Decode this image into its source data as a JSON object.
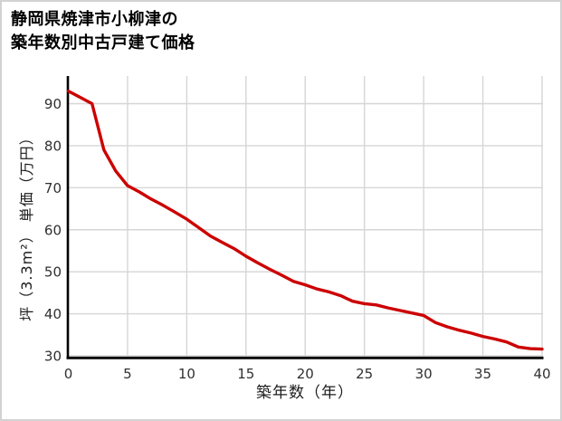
{
  "page": {
    "title_line1": "静岡県焼津市小柳津の",
    "title_line2": "築年数別中古戸建て価格"
  },
  "chart_data": {
    "type": "line",
    "title": "静岡県焼津市小柳津の築年数別中古戸建て価格",
    "xlabel": "築年数（年）",
    "ylabel": "坪（3.3m²） 単価（万円）",
    "x": [
      0,
      1,
      2,
      3,
      4,
      5,
      6,
      7,
      8,
      9,
      10,
      11,
      12,
      13,
      14,
      15,
      16,
      17,
      18,
      19,
      20,
      21,
      22,
      23,
      24,
      25,
      26,
      27,
      28,
      29,
      30,
      31,
      32,
      33,
      34,
      35,
      36,
      37,
      38,
      39,
      40
    ],
    "values": [
      93,
      91.5,
      90,
      79,
      74,
      70.5,
      69,
      67.3,
      65.8,
      64.2,
      62.5,
      60.5,
      58.5,
      57,
      55.5,
      53.7,
      52.1,
      50.6,
      49.2,
      47.7,
      46.9,
      45.9,
      45.2,
      44.3,
      43,
      42.4,
      42.1,
      41.4,
      40.8,
      40.2,
      39.6,
      37.9,
      36.9,
      36.1,
      35.4,
      34.6,
      34,
      33.3,
      32.1,
      31.7,
      31.6
    ],
    "xlim": [
      0,
      40
    ],
    "ylim": [
      30,
      96
    ],
    "x_ticks": [
      0,
      5,
      10,
      15,
      20,
      25,
      30,
      35,
      40
    ],
    "y_ticks": [
      30,
      40,
      50,
      60,
      70,
      80,
      90
    ],
    "grid": true,
    "legend": "none",
    "line_color": "#cc0000",
    "grid_color": "#d6d6d6",
    "axis_color": "#000000",
    "tick_label_color": "#303030"
  }
}
